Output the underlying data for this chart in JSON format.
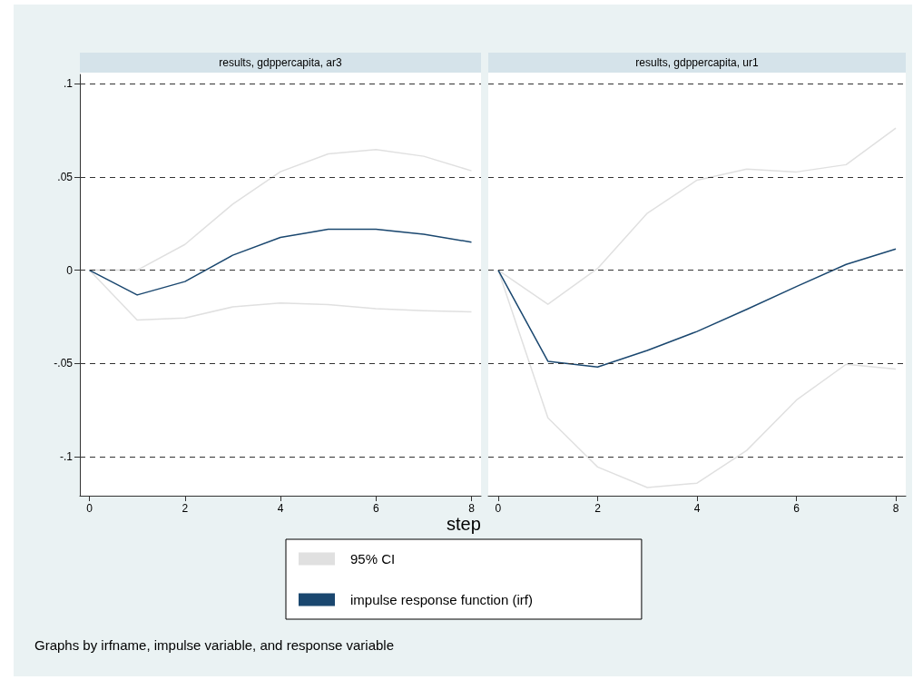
{
  "chart_data": [
    {
      "type": "line",
      "title": "results, gdppercapita, ar3",
      "xlabel": "step",
      "legend": "bottom",
      "grid": "y",
      "annotations": [
        "Graphs by irfname, impulse variable, and response variable"
      ],
      "x": [
        0,
        1,
        2,
        3,
        4,
        5,
        6,
        7,
        8
      ],
      "xlim": [
        -0.2,
        8.2
      ],
      "xticks": [
        0,
        2,
        4,
        6,
        8
      ],
      "ylim": [
        -0.121,
        0.105
      ],
      "yticks": [
        {
          "value": -0.1,
          "label": "-.1"
        },
        {
          "value": -0.05,
          "label": "-.05"
        },
        0,
        {
          "value": 0.05,
          "label": ".05"
        },
        {
          "value": 0.1,
          "label": ".1"
        }
      ],
      "series": [
        {
          "name": "95% CI",
          "color": "#e0e0e0",
          "values": [
            0,
            0,
            0.0138,
            0.0354,
            0.0528,
            0.0624,
            0.0647,
            0.0611,
            0.0533
          ]
        },
        {
          "color": "#e0e0e0",
          "values": [
            0,
            -0.0268,
            -0.0257,
            -0.0197,
            -0.0176,
            -0.0185,
            -0.0207,
            -0.0218,
            -0.0224
          ]
        },
        {
          "name": "impulse response function (irf)",
          "color": "#1a476f",
          "values": [
            0,
            -0.0133,
            -0.0061,
            0.008,
            0.0176,
            0.0219,
            0.0219,
            0.0193,
            0.015
          ]
        }
      ]
    },
    {
      "type": "line",
      "title": "results, gdppercapita, ur1",
      "grid": "y",
      "tick_labels": "x",
      "x": [
        0,
        1,
        2,
        3,
        4,
        5,
        6,
        7,
        8
      ],
      "xlim": [
        -0.2,
        8.2
      ],
      "xticks": [
        0,
        2,
        4,
        6,
        8
      ],
      "ylim": [
        -0.121,
        0.105
      ],
      "yticks": [
        -0.1,
        -0.05,
        0,
        0.05,
        0.1
      ],
      "series": [
        {
          "color": "#e0e0e0",
          "values": [
            0,
            -0.0183,
            0.0009,
            0.0306,
            0.0483,
            0.0542,
            0.0527,
            0.0566,
            0.0762
          ]
        },
        {
          "color": "#e0e0e0",
          "values": [
            0,
            -0.0792,
            -0.1056,
            -0.1166,
            -0.1143,
            -0.0967,
            -0.0697,
            -0.0505,
            -0.0531
          ]
        },
        {
          "color": "#1a476f",
          "values": [
            0,
            -0.0489,
            -0.052,
            -0.0431,
            -0.0329,
            -0.021,
            -0.0088,
            0.0031,
            0.0114
          ]
        }
      ]
    }
  ]
}
